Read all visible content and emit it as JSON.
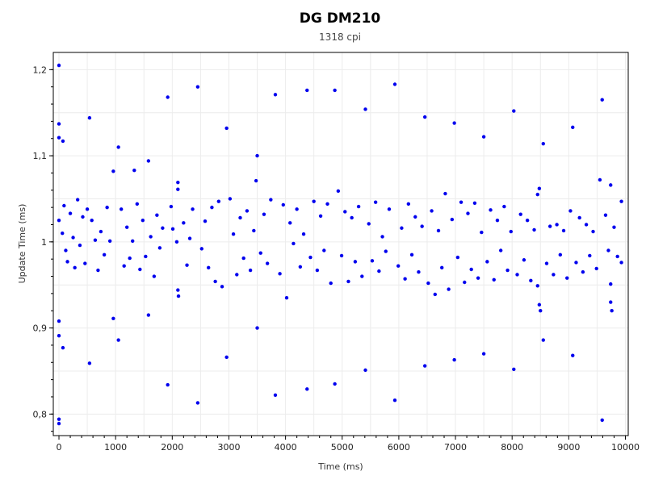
{
  "chart_data": {
    "type": "scatter",
    "title": "DG DM210",
    "subtitle": "1318 cpi",
    "xlabel": "Time (ms)",
    "ylabel": "Update Time (ms)",
    "xlim": [
      -100,
      10050
    ],
    "ylim": [
      0.775,
      1.22
    ],
    "xticks": [
      "0",
      "1000",
      "2000",
      "3000",
      "4000",
      "5000",
      "6000",
      "7000",
      "8000",
      "9000",
      "10000"
    ],
    "yticks": [
      "0,8",
      "0,9",
      "1",
      "1,1",
      "1,2"
    ],
    "grid": true,
    "legend": "none",
    "point_color": "#0000ee",
    "series": [
      {
        "values": [
          [
            0,
            1.205
          ],
          [
            0,
            1.137
          ],
          [
            0,
            1.121
          ],
          [
            70,
            1.117
          ],
          [
            0,
            0.908
          ],
          [
            0,
            0.891
          ],
          [
            70,
            0.877
          ],
          [
            0,
            0.794
          ],
          [
            0,
            0.789
          ],
          [
            540,
            1.144
          ],
          [
            540,
            0.859
          ],
          [
            1050,
            1.11
          ],
          [
            960,
            1.082
          ],
          [
            960,
            0.911
          ],
          [
            1050,
            0.886
          ],
          [
            1330,
            1.083
          ],
          [
            1580,
            1.094
          ],
          [
            1580,
            0.915
          ],
          [
            1920,
            1.168
          ],
          [
            1920,
            0.834
          ],
          [
            2100,
            1.069
          ],
          [
            2100,
            1.061
          ],
          [
            2450,
            1.18
          ],
          [
            2450,
            0.813
          ],
          [
            2960,
            1.132
          ],
          [
            2960,
            0.866
          ],
          [
            3500,
            1.1
          ],
          [
            3500,
            0.9
          ],
          [
            3480,
            1.071
          ],
          [
            3820,
            1.171
          ],
          [
            3820,
            0.822
          ],
          [
            4380,
            1.176
          ],
          [
            4380,
            0.829
          ],
          [
            4870,
            1.176
          ],
          [
            4870,
            0.835
          ],
          [
            5410,
            1.154
          ],
          [
            5410,
            0.851
          ],
          [
            5930,
            1.183
          ],
          [
            5930,
            0.816
          ],
          [
            6460,
            1.145
          ],
          [
            6460,
            0.856
          ],
          [
            6980,
            1.138
          ],
          [
            6980,
            0.863
          ],
          [
            7500,
            1.122
          ],
          [
            7500,
            0.87
          ],
          [
            8030,
            1.152
          ],
          [
            8030,
            0.852
          ],
          [
            8550,
            1.114
          ],
          [
            8550,
            0.886
          ],
          [
            9070,
            1.133
          ],
          [
            9070,
            0.868
          ],
          [
            9590,
            1.165
          ],
          [
            9590,
            0.793
          ],
          [
            9550,
            1.072
          ],
          [
            9740,
            1.066
          ],
          [
            9740,
            0.93
          ],
          [
            9760,
            0.92
          ],
          [
            9740,
            0.951
          ],
          [
            9930,
            1.047
          ],
          [
            9930,
            0.976
          ],
          [
            8450,
            1.055
          ],
          [
            8480,
            1.062
          ],
          [
            8480,
            0.927
          ],
          [
            8500,
            0.92
          ],
          [
            8450,
            0.949
          ],
          [
            1980,
            1.041
          ],
          [
            2010,
            1.015
          ],
          [
            2080,
            1.0
          ],
          [
            2100,
            0.944
          ],
          [
            2110,
            0.937
          ],
          [
            0,
            1.025
          ],
          [
            60,
            1.01
          ],
          [
            90,
            1.042
          ],
          [
            120,
            0.99
          ],
          [
            150,
            0.977
          ],
          [
            200,
            1.033
          ],
          [
            250,
            1.005
          ],
          [
            280,
            0.97
          ],
          [
            330,
            1.049
          ],
          [
            370,
            0.996
          ],
          [
            420,
            1.029
          ],
          [
            460,
            0.975
          ],
          [
            500,
            1.038
          ],
          [
            580,
            1.025
          ],
          [
            640,
            1.002
          ],
          [
            690,
            0.967
          ],
          [
            740,
            1.012
          ],
          [
            800,
            0.985
          ],
          [
            850,
            1.04
          ],
          [
            900,
            1.001
          ],
          [
            1100,
            1.038
          ],
          [
            1150,
            0.972
          ],
          [
            1200,
            1.017
          ],
          [
            1250,
            0.981
          ],
          [
            1300,
            1.001
          ],
          [
            1380,
            1.044
          ],
          [
            1430,
            0.968
          ],
          [
            1480,
            1.025
          ],
          [
            1530,
            0.983
          ],
          [
            1620,
            1.006
          ],
          [
            1680,
            0.96
          ],
          [
            1730,
            1.031
          ],
          [
            1780,
            0.993
          ],
          [
            1830,
            1.016
          ],
          [
            2200,
            1.022
          ],
          [
            2260,
            0.973
          ],
          [
            2310,
            1.004
          ],
          [
            2360,
            1.038
          ],
          [
            2520,
            0.992
          ],
          [
            2580,
            1.024
          ],
          [
            2640,
            0.97
          ],
          [
            2700,
            1.04
          ],
          [
            2760,
            0.954
          ],
          [
            2820,
            1.047
          ],
          [
            2880,
            0.948
          ],
          [
            3020,
            1.05
          ],
          [
            3080,
            1.009
          ],
          [
            3140,
            0.962
          ],
          [
            3200,
            1.028
          ],
          [
            3260,
            0.981
          ],
          [
            3320,
            1.036
          ],
          [
            3380,
            0.967
          ],
          [
            3440,
            1.013
          ],
          [
            3560,
            0.987
          ],
          [
            3620,
            1.032
          ],
          [
            3680,
            0.975
          ],
          [
            3740,
            1.049
          ],
          [
            3900,
            0.963
          ],
          [
            3960,
            1.043
          ],
          [
            4020,
            0.935
          ],
          [
            4080,
            1.022
          ],
          [
            4140,
            0.998
          ],
          [
            4200,
            1.038
          ],
          [
            4260,
            0.971
          ],
          [
            4320,
            1.009
          ],
          [
            4440,
            0.982
          ],
          [
            4500,
            1.047
          ],
          [
            4560,
            0.967
          ],
          [
            4620,
            1.03
          ],
          [
            4680,
            0.99
          ],
          [
            4740,
            1.044
          ],
          [
            4800,
            0.952
          ],
          [
            4930,
            1.059
          ],
          [
            4990,
            0.984
          ],
          [
            5050,
            1.035
          ],
          [
            5110,
            0.954
          ],
          [
            5170,
            1.028
          ],
          [
            5230,
            0.977
          ],
          [
            5290,
            1.041
          ],
          [
            5350,
            0.96
          ],
          [
            5470,
            1.021
          ],
          [
            5530,
            0.978
          ],
          [
            5590,
            1.046
          ],
          [
            5650,
            0.966
          ],
          [
            5710,
            1.006
          ],
          [
            5770,
            0.989
          ],
          [
            5830,
            1.038
          ],
          [
            5990,
            0.972
          ],
          [
            6050,
            1.016
          ],
          [
            6110,
            0.957
          ],
          [
            6170,
            1.044
          ],
          [
            6230,
            0.985
          ],
          [
            6290,
            1.029
          ],
          [
            6350,
            0.965
          ],
          [
            6410,
            1.018
          ],
          [
            6520,
            0.952
          ],
          [
            6580,
            1.036
          ],
          [
            6640,
            0.939
          ],
          [
            6700,
            1.013
          ],
          [
            6760,
            0.97
          ],
          [
            6820,
            1.056
          ],
          [
            6880,
            0.945
          ],
          [
            6940,
            1.026
          ],
          [
            7040,
            0.982
          ],
          [
            7100,
            1.046
          ],
          [
            7160,
            0.953
          ],
          [
            7220,
            1.033
          ],
          [
            7280,
            0.968
          ],
          [
            7340,
            1.045
          ],
          [
            7400,
            0.958
          ],
          [
            7460,
            1.011
          ],
          [
            7560,
            0.977
          ],
          [
            7620,
            1.037
          ],
          [
            7680,
            0.956
          ],
          [
            7740,
            1.025
          ],
          [
            7800,
            0.99
          ],
          [
            7860,
            1.041
          ],
          [
            7920,
            0.967
          ],
          [
            7980,
            1.012
          ],
          [
            8090,
            0.962
          ],
          [
            8150,
            1.032
          ],
          [
            8210,
            0.979
          ],
          [
            8270,
            1.025
          ],
          [
            8330,
            0.955
          ],
          [
            8390,
            1.014
          ],
          [
            8610,
            0.975
          ],
          [
            8670,
            1.018
          ],
          [
            8730,
            0.962
          ],
          [
            8790,
            1.02
          ],
          [
            8850,
            0.985
          ],
          [
            8910,
            1.013
          ],
          [
            8970,
            0.958
          ],
          [
            9030,
            1.036
          ],
          [
            9130,
            0.976
          ],
          [
            9190,
            1.028
          ],
          [
            9250,
            0.965
          ],
          [
            9310,
            1.02
          ],
          [
            9370,
            0.984
          ],
          [
            9430,
            1.012
          ],
          [
            9490,
            0.969
          ],
          [
            9650,
            1.031
          ],
          [
            9700,
            0.99
          ],
          [
            9800,
            1.017
          ],
          [
            9860,
            0.983
          ]
        ]
      }
    ]
  }
}
